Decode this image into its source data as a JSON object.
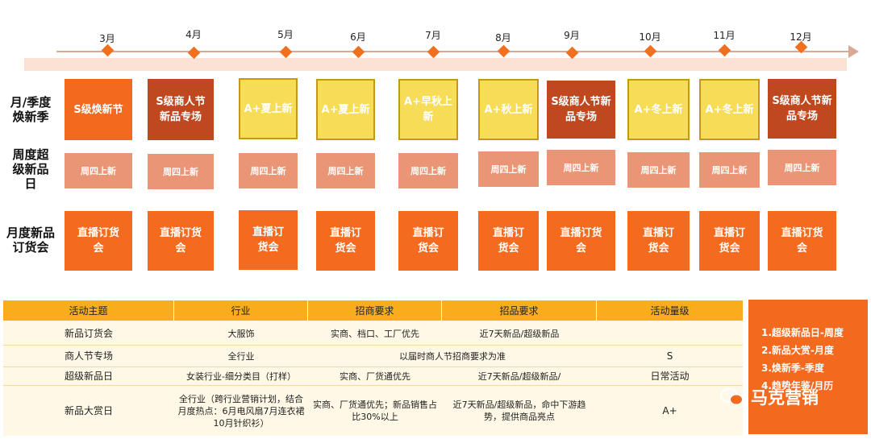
{
  "months": [
    "3月",
    "4月",
    "5月",
    "6月",
    "7月",
    "8月",
    "9月",
    "10月",
    "11月",
    "12月"
  ],
  "row_labels": {
    "monthly": "月/季度焕新季",
    "weekly": "周度超级新品日",
    "live": "月度新品订货会"
  },
  "monthly_boxes": [
    {
      "text": "S级焕新节",
      "style": "s1"
    },
    {
      "text": "S级商人节新品专场",
      "style": "s2"
    },
    {
      "text": "A+夏上新",
      "style": "a"
    },
    {
      "text": "A+夏上新",
      "style": "a"
    },
    {
      "text": "A+早秋上新",
      "style": "a"
    },
    {
      "text": "A+秋上新",
      "style": "a"
    },
    {
      "text": "S级商人节新品专场",
      "style": "s2"
    },
    {
      "text": "A+冬上新",
      "style": "a"
    },
    {
      "text": "A+冬上新",
      "style": "a"
    },
    {
      "text": "S级商人节新品专场",
      "style": "s2"
    }
  ],
  "weekly_label": "周四上新",
  "live_label": "直播订货会",
  "table": {
    "headers": [
      "活动主题",
      "行业",
      "招商要求",
      "招品要求",
      "活动量级"
    ],
    "rows": [
      {
        "theme": "新品订货会",
        "industry": "大服饰",
        "merchant": "实商、档口、工厂优先",
        "product": "近7天新品/超级新品",
        "level": ""
      },
      {
        "theme": "商人节专场",
        "industry": "全行业",
        "merchant_product": "以届时商人节招商要求为准",
        "level": "S"
      },
      {
        "theme": "超级新品日",
        "industry": "女装行业-细分类目（打样）",
        "merchant": "实商、厂货通优先",
        "product": "近7天新品/超级新品/",
        "level": "日常活动"
      },
      {
        "theme": "新品大赏日",
        "industry": "全行业（跨行业营销计划，结合月度热点：6月电风扇7月连衣裙10月针织衫）",
        "merchant": "实商、厂货通优先；新品销售占比30%以上",
        "product": "近7天新品/超级新品，命中下游趋势，提供商品亮点",
        "level": "A+"
      }
    ]
  },
  "panel_items": [
    "1.超级新品日-周度",
    "2.新品大赏-月度",
    "3.焕新季-季度",
    "4.趋势年鉴/月历"
  ],
  "watermark": "马克营销",
  "colors": {
    "orange": "#f36a1e",
    "dark_orange": "#c0481e",
    "yellow": "#f7dc57",
    "salmon": "#ea9676",
    "header": "#f8ae1c"
  }
}
